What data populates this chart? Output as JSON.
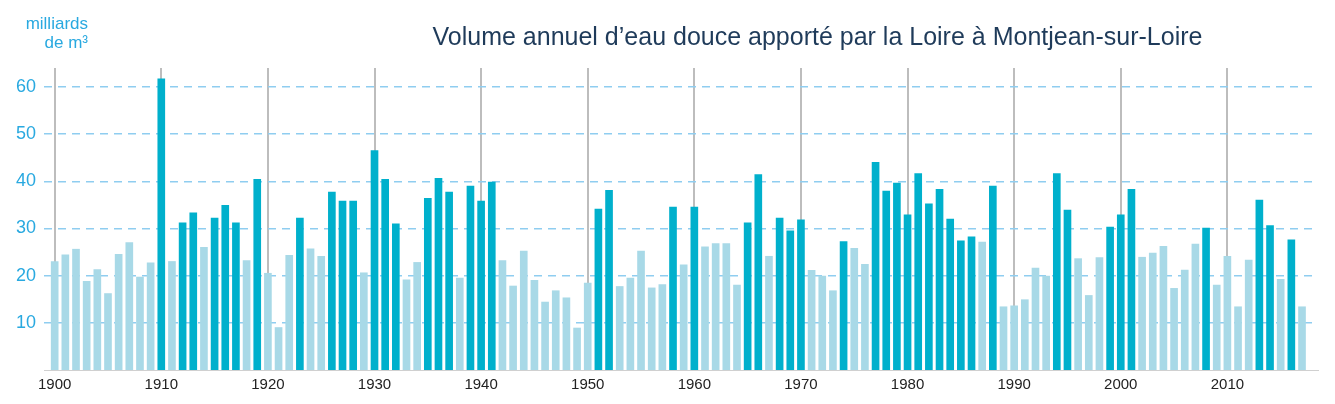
{
  "chart_data": {
    "type": "bar",
    "title": "Volume annuel d’eau douce apporté par la Loire à Montjean-sur-Loire",
    "ylabel": "milliards de m³",
    "x": [
      1900,
      1901,
      1902,
      1903,
      1904,
      1905,
      1906,
      1907,
      1908,
      1909,
      1910,
      1911,
      1912,
      1913,
      1914,
      1915,
      1916,
      1917,
      1918,
      1919,
      1920,
      1921,
      1922,
      1923,
      1924,
      1925,
      1926,
      1927,
      1928,
      1929,
      1930,
      1931,
      1932,
      1933,
      1934,
      1935,
      1936,
      1937,
      1938,
      1939,
      1940,
      1941,
      1942,
      1943,
      1944,
      1945,
      1946,
      1947,
      1948,
      1949,
      1950,
      1951,
      1952,
      1953,
      1954,
      1955,
      1956,
      1957,
      1958,
      1959,
      1960,
      1961,
      1962,
      1963,
      1964,
      1965,
      1966,
      1967,
      1968,
      1969,
      1970,
      1971,
      1972,
      1973,
      1974,
      1975,
      1976,
      1977,
      1978,
      1979,
      1980,
      1981,
      1982,
      1983,
      1984,
      1985,
      1986,
      1987,
      1988,
      1989,
      1990,
      1991,
      1992,
      1993,
      1994,
      1995,
      1996,
      1997,
      1998,
      1999,
      2000,
      2001,
      2002,
      2003,
      2004,
      2005,
      2006,
      2007,
      2008,
      2009,
      2010,
      2011,
      2012,
      2013,
      2014,
      2015,
      2016,
      2017
    ],
    "values": [
      23.0,
      24.4,
      25.6,
      18.8,
      21.3,
      16.2,
      24.5,
      27.0,
      19.7,
      22.7,
      61.7,
      23.0,
      31.2,
      33.3,
      26.0,
      32.2,
      34.9,
      31.2,
      23.2,
      40.4,
      20.5,
      9.0,
      24.3,
      32.2,
      25.7,
      24.1,
      37.7,
      35.8,
      35.8,
      20.6,
      46.5,
      40.4,
      31.0,
      19.1,
      22.8,
      36.4,
      40.6,
      37.7,
      19.5,
      39.0,
      35.8,
      39.8,
      23.2,
      17.8,
      25.2,
      19.0,
      14.4,
      16.8,
      15.3,
      8.9,
      18.4,
      34.1,
      38.1,
      17.7,
      19.5,
      25.2,
      17.4,
      18.1,
      34.5,
      22.3,
      34.5,
      26.1,
      26.8,
      26.8,
      18.0,
      31.2,
      41.4,
      24.1,
      32.2,
      29.5,
      31.8,
      21.1,
      19.9,
      16.8,
      27.2,
      25.8,
      22.4,
      44.0,
      37.9,
      39.6,
      32.9,
      41.6,
      35.2,
      38.3,
      32.0,
      27.4,
      28.2,
      27.1,
      39.0,
      13.4,
      13.6,
      14.9,
      21.6,
      19.9,
      41.6,
      33.9,
      23.6,
      15.8,
      23.8,
      30.3,
      32.9,
      38.3,
      23.9,
      24.8,
      26.2,
      17.3,
      21.2,
      26.7,
      30.1,
      18.0,
      24.1,
      13.4,
      23.3,
      36.0,
      30.6,
      19.2,
      27.6,
      13.4
    ],
    "colors": [
      "#a8d9e7",
      "#a8d9e7",
      "#a8d9e7",
      "#a8d9e7",
      "#a8d9e7",
      "#a8d9e7",
      "#a8d9e7",
      "#a8d9e7",
      "#a8d9e7",
      "#a8d9e7",
      "#00b0cc",
      "#a8d9e7",
      "#00b0cc",
      "#00b0cc",
      "#a8d9e7",
      "#00b0cc",
      "#00b0cc",
      "#00b0cc",
      "#a8d9e7",
      "#00b0cc",
      "#a8d9e7",
      "#a8d9e7",
      "#a8d9e7",
      "#00b0cc",
      "#a8d9e7",
      "#a8d9e7",
      "#00b0cc",
      "#00b0cc",
      "#00b0cc",
      "#a8d9e7",
      "#00b0cc",
      "#00b0cc",
      "#00b0cc",
      "#a8d9e7",
      "#a8d9e7",
      "#00b0cc",
      "#00b0cc",
      "#00b0cc",
      "#a8d9e7",
      "#00b0cc",
      "#00b0cc",
      "#00b0cc",
      "#a8d9e7",
      "#a8d9e7",
      "#a8d9e7",
      "#a8d9e7",
      "#a8d9e7",
      "#a8d9e7",
      "#a8d9e7",
      "#a8d9e7",
      "#a8d9e7",
      "#00b0cc",
      "#00b0cc",
      "#a8d9e7",
      "#a8d9e7",
      "#a8d9e7",
      "#a8d9e7",
      "#a8d9e7",
      "#00b0cc",
      "#a8d9e7",
      "#00b0cc",
      "#a8d9e7",
      "#a8d9e7",
      "#a8d9e7",
      "#a8d9e7",
      "#00b0cc",
      "#00b0cc",
      "#a8d9e7",
      "#00b0cc",
      "#00b0cc",
      "#00b0cc",
      "#a8d9e7",
      "#a8d9e7",
      "#a8d9e7",
      "#00b0cc",
      "#a8d9e7",
      "#a8d9e7",
      "#00b0cc",
      "#00b0cc",
      "#00b0cc",
      "#00b0cc",
      "#00b0cc",
      "#00b0cc",
      "#00b0cc",
      "#00b0cc",
      "#00b0cc",
      "#00b0cc",
      "#a8d9e7",
      "#00b0cc",
      "#a8d9e7",
      "#a8d9e7",
      "#a8d9e7",
      "#a8d9e7",
      "#a8d9e7",
      "#00b0cc",
      "#00b0cc",
      "#a8d9e7",
      "#a8d9e7",
      "#a8d9e7",
      "#00b0cc",
      "#00b0cc",
      "#00b0cc",
      "#a8d9e7",
      "#a8d9e7",
      "#a8d9e7",
      "#a8d9e7",
      "#a8d9e7",
      "#a8d9e7",
      "#00b0cc",
      "#a8d9e7",
      "#a8d9e7",
      "#a8d9e7",
      "#a8d9e7",
      "#00b0cc",
      "#00b0cc",
      "#a8d9e7",
      "#00b0cc",
      "#a8d9e7"
    ],
    "xlim": [
      1899,
      2018.5
    ],
    "xticks": [
      1900,
      1910,
      1920,
      1930,
      1940,
      1950,
      1960,
      1970,
      1980,
      1990,
      2000,
      2010
    ],
    "ylim": [
      0,
      64
    ],
    "yticks": [
      10,
      20,
      30,
      40,
      50,
      60
    ],
    "grid": true
  }
}
